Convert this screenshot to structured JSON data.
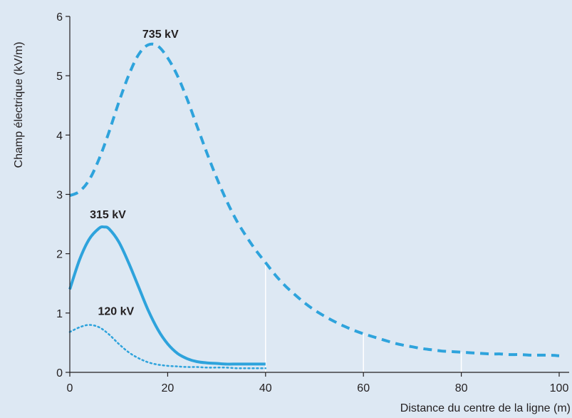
{
  "chart_data": {
    "type": "line",
    "title": "",
    "xlabel": "Distance du centre de la ligne (m)",
    "ylabel": "Champ électrique (kV/m)",
    "xlim": [
      0,
      100
    ],
    "ylim": [
      0,
      6
    ],
    "x_ticks": [
      "0",
      "20",
      "40",
      "60",
      "80",
      "100"
    ],
    "y_ticks": [
      "0",
      "1",
      "2",
      "3",
      "4",
      "5",
      "6"
    ],
    "grid": false,
    "colors": {
      "line": "#2ea3dc",
      "axis": "#231f20",
      "background": "#dde8f3",
      "marker_lines": "#ffffff"
    },
    "reference_lines_x": [
      40,
      60,
      80
    ],
    "series": [
      {
        "name": "735 kV",
        "style": "dashed",
        "x": [
          0,
          2,
          4,
          6,
          8,
          10,
          12,
          14,
          16,
          18,
          20,
          22,
          24,
          26,
          28,
          30,
          32,
          34,
          36,
          38,
          40,
          42,
          44,
          46,
          48,
          50,
          52,
          54,
          56,
          58,
          60,
          62,
          64,
          66,
          68,
          70,
          72,
          74,
          76,
          78,
          80,
          82,
          84,
          86,
          88,
          90,
          92,
          94,
          96,
          98,
          100
        ],
        "values": [
          2.98,
          3.05,
          3.25,
          3.6,
          4.05,
          4.55,
          5.0,
          5.35,
          5.52,
          5.5,
          5.3,
          5.0,
          4.6,
          4.15,
          3.7,
          3.28,
          2.9,
          2.57,
          2.3,
          2.06,
          1.85,
          1.64,
          1.46,
          1.31,
          1.17,
          1.05,
          0.95,
          0.86,
          0.78,
          0.71,
          0.65,
          0.6,
          0.55,
          0.5,
          0.46,
          0.43,
          0.4,
          0.38,
          0.36,
          0.35,
          0.34,
          0.33,
          0.32,
          0.31,
          0.31,
          0.3,
          0.3,
          0.29,
          0.29,
          0.29,
          0.28
        ]
      },
      {
        "name": "315 kV",
        "style": "solid",
        "x": [
          0,
          2,
          4,
          6,
          7,
          8,
          10,
          12,
          14,
          16,
          18,
          20,
          22,
          24,
          26,
          28,
          30,
          32,
          34,
          36,
          38,
          40
        ],
        "values": [
          1.4,
          1.9,
          2.25,
          2.43,
          2.45,
          2.42,
          2.2,
          1.85,
          1.45,
          1.05,
          0.72,
          0.48,
          0.32,
          0.23,
          0.18,
          0.16,
          0.15,
          0.14,
          0.14,
          0.14,
          0.14,
          0.14
        ]
      },
      {
        "name": "120 kV",
        "style": "dotted",
        "x": [
          0,
          2,
          4,
          6,
          8,
          10,
          12,
          14,
          16,
          18,
          20,
          22,
          24,
          26,
          28,
          30,
          32,
          34,
          36,
          38,
          40
        ],
        "values": [
          0.68,
          0.76,
          0.8,
          0.76,
          0.64,
          0.48,
          0.34,
          0.24,
          0.17,
          0.13,
          0.11,
          0.1,
          0.09,
          0.09,
          0.08,
          0.08,
          0.08,
          0.07,
          0.07,
          0.07,
          0.07
        ]
      }
    ]
  }
}
